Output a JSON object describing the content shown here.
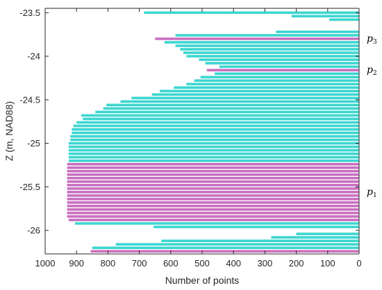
{
  "chart_data": {
    "type": "bar",
    "orientation": "horizontal",
    "xlabel": "Number of points",
    "ylabel": "Z (m, NAD88)",
    "xlim": [
      1000,
      0
    ],
    "x_reversed": true,
    "ylim": [
      -26.27,
      -23.45
    ],
    "x_ticks": [
      1000,
      900,
      800,
      700,
      600,
      500,
      400,
      300,
      200,
      100,
      0
    ],
    "y_ticks": [
      -26,
      -25.5,
      -25,
      -24.5,
      -24,
      -23.5
    ],
    "bin_height": 0.04,
    "colors": {
      "cyan": "#3dd6d0",
      "magenta": "#c86fbf"
    },
    "bins": [
      {
        "z": -23.5,
        "value": 685,
        "color": "cyan"
      },
      {
        "z": -23.54,
        "value": 215,
        "color": "cyan"
      },
      {
        "z": -23.58,
        "value": 95,
        "color": "cyan"
      },
      {
        "z": -23.72,
        "value": 265,
        "color": "cyan"
      },
      {
        "z": -23.76,
        "value": 585,
        "color": "cyan"
      },
      {
        "z": -23.8,
        "value": 650,
        "color": "magenta"
      },
      {
        "z": -23.84,
        "value": 620,
        "color": "cyan"
      },
      {
        "z": -23.88,
        "value": 585,
        "color": "cyan"
      },
      {
        "z": -23.92,
        "value": 570,
        "color": "cyan"
      },
      {
        "z": -23.96,
        "value": 560,
        "color": "cyan"
      },
      {
        "z": -24.0,
        "value": 550,
        "color": "cyan"
      },
      {
        "z": -24.04,
        "value": 510,
        "color": "cyan"
      },
      {
        "z": -24.08,
        "value": 490,
        "color": "cyan"
      },
      {
        "z": -24.12,
        "value": 445,
        "color": "cyan"
      },
      {
        "z": -24.16,
        "value": 485,
        "color": "magenta"
      },
      {
        "z": -24.2,
        "value": 460,
        "color": "cyan"
      },
      {
        "z": -24.24,
        "value": 505,
        "color": "cyan"
      },
      {
        "z": -24.28,
        "value": 525,
        "color": "cyan"
      },
      {
        "z": -24.32,
        "value": 550,
        "color": "cyan"
      },
      {
        "z": -24.36,
        "value": 590,
        "color": "cyan"
      },
      {
        "z": -24.4,
        "value": 635,
        "color": "cyan"
      },
      {
        "z": -24.44,
        "value": 660,
        "color": "cyan"
      },
      {
        "z": -24.48,
        "value": 725,
        "color": "cyan"
      },
      {
        "z": -24.52,
        "value": 760,
        "color": "cyan"
      },
      {
        "z": -24.56,
        "value": 805,
        "color": "cyan"
      },
      {
        "z": -24.6,
        "value": 815,
        "color": "cyan"
      },
      {
        "z": -24.64,
        "value": 840,
        "color": "cyan"
      },
      {
        "z": -24.68,
        "value": 885,
        "color": "cyan"
      },
      {
        "z": -24.72,
        "value": 880,
        "color": "cyan"
      },
      {
        "z": -24.76,
        "value": 900,
        "color": "cyan"
      },
      {
        "z": -24.8,
        "value": 910,
        "color": "cyan"
      },
      {
        "z": -24.84,
        "value": 915,
        "color": "cyan"
      },
      {
        "z": -24.88,
        "value": 915,
        "color": "cyan"
      },
      {
        "z": -24.92,
        "value": 920,
        "color": "cyan"
      },
      {
        "z": -24.96,
        "value": 920,
        "color": "cyan"
      },
      {
        "z": -25.0,
        "value": 925,
        "color": "cyan"
      },
      {
        "z": -25.04,
        "value": 925,
        "color": "cyan"
      },
      {
        "z": -25.08,
        "value": 925,
        "color": "cyan"
      },
      {
        "z": -25.12,
        "value": 925,
        "color": "cyan"
      },
      {
        "z": -25.16,
        "value": 925,
        "color": "cyan"
      },
      {
        "z": -25.2,
        "value": 925,
        "color": "cyan"
      },
      {
        "z": -25.24,
        "value": 930,
        "color": "magenta"
      },
      {
        "z": -25.28,
        "value": 930,
        "color": "magenta"
      },
      {
        "z": -25.32,
        "value": 930,
        "color": "magenta"
      },
      {
        "z": -25.36,
        "value": 930,
        "color": "magenta"
      },
      {
        "z": -25.4,
        "value": 930,
        "color": "magenta"
      },
      {
        "z": -25.44,
        "value": 930,
        "color": "magenta"
      },
      {
        "z": -25.48,
        "value": 930,
        "color": "magenta"
      },
      {
        "z": -25.52,
        "value": 930,
        "color": "magenta"
      },
      {
        "z": -25.56,
        "value": 930,
        "color": "magenta"
      },
      {
        "z": -25.6,
        "value": 930,
        "color": "magenta"
      },
      {
        "z": -25.64,
        "value": 930,
        "color": "magenta"
      },
      {
        "z": -25.68,
        "value": 930,
        "color": "magenta"
      },
      {
        "z": -25.72,
        "value": 930,
        "color": "magenta"
      },
      {
        "z": -25.76,
        "value": 930,
        "color": "magenta"
      },
      {
        "z": -25.8,
        "value": 930,
        "color": "magenta"
      },
      {
        "z": -25.84,
        "value": 930,
        "color": "magenta"
      },
      {
        "z": -25.88,
        "value": 925,
        "color": "magenta"
      },
      {
        "z": -25.92,
        "value": 905,
        "color": "cyan"
      },
      {
        "z": -25.96,
        "value": 655,
        "color": "cyan"
      },
      {
        "z": -26.04,
        "value": 200,
        "color": "cyan"
      },
      {
        "z": -26.08,
        "value": 280,
        "color": "cyan"
      },
      {
        "z": -26.12,
        "value": 630,
        "color": "cyan"
      },
      {
        "z": -26.16,
        "value": 775,
        "color": "cyan"
      },
      {
        "z": -26.2,
        "value": 850,
        "color": "cyan"
      },
      {
        "z": -26.24,
        "value": 855,
        "color": "magenta"
      }
    ],
    "annotations": [
      {
        "z": -23.8,
        "label": "p",
        "sub": "3"
      },
      {
        "z": -24.16,
        "label": "p",
        "sub": "2"
      },
      {
        "z": -25.56,
        "label": "p",
        "sub": "1"
      }
    ]
  }
}
